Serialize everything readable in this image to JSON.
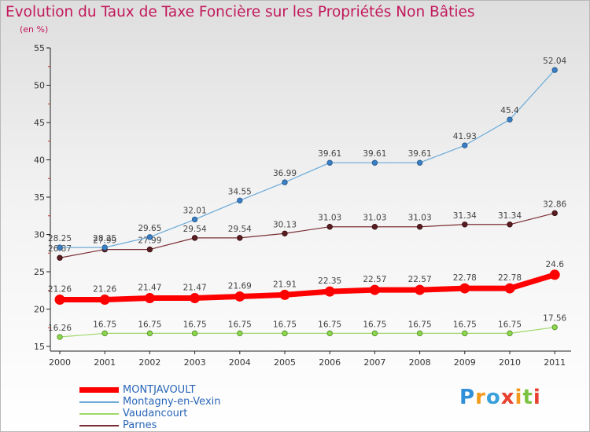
{
  "header": {
    "title": "Evolution du Taux de Taxe Foncière sur les Propriétés Non Bâties",
    "subtitle": "(en %)"
  },
  "logo_text": "Proxiti",
  "chart_data": {
    "type": "line",
    "title": "Evolution du Taux de Taxe Foncière sur les Propriétés Non Bâties",
    "ylabel": "(en %)",
    "xlabel": "",
    "x": [
      "2000",
      "2001",
      "2002",
      "2003",
      "2004",
      "2005",
      "2006",
      "2007",
      "2008",
      "2009",
      "2010",
      "2011"
    ],
    "ylim": [
      15,
      55
    ],
    "yticks": [
      15,
      20,
      25,
      30,
      35,
      40,
      45,
      50,
      55
    ],
    "grid": false,
    "legend_position": "bottom-left",
    "series": [
      {
        "name": "MONTJAVOULT",
        "color": "#ff0000",
        "values": [
          21.26,
          21.26,
          21.47,
          21.47,
          21.69,
          21.91,
          22.35,
          22.57,
          22.57,
          22.78,
          22.78,
          24.6
        ],
        "labels": [
          "21.26",
          "21.26",
          "21.47",
          "21.47",
          "21.69",
          "21.91",
          "22.35",
          "22.57",
          "22.57",
          "22.78",
          "22.78",
          "24.6"
        ]
      },
      {
        "name": "Montagny-en-Vexin",
        "color": "#6aaad8",
        "values": [
          28.25,
          28.25,
          29.65,
          32.01,
          34.55,
          36.99,
          39.61,
          39.61,
          39.61,
          41.93,
          45.4,
          52.04
        ],
        "labels": [
          "28.25",
          "28.25",
          "29.65",
          "32.01",
          "34.55",
          "36.99",
          "39.61",
          "39.61",
          "39.61",
          "41.93",
          "45.4",
          "52.04"
        ]
      },
      {
        "name": "Vaudancourt",
        "color": "#9fd86a",
        "values": [
          16.26,
          16.75,
          16.75,
          16.75,
          16.75,
          16.75,
          16.75,
          16.75,
          16.75,
          16.75,
          16.75,
          17.56
        ],
        "labels": [
          "16.26",
          "16.75",
          "16.75",
          "16.75",
          "16.75",
          "16.75",
          "16.75",
          "16.75",
          "16.75",
          "16.75",
          "16.75",
          "17.56"
        ]
      },
      {
        "name": "Parnes",
        "color": "#7a2e33",
        "values": [
          26.87,
          27.99,
          27.99,
          29.54,
          29.54,
          30.13,
          31.03,
          31.03,
          31.03,
          31.34,
          31.34,
          32.86
        ],
        "labels": [
          "26.87",
          "27.99",
          "27.99",
          "29.54",
          "29.54",
          "30.13",
          "31.03",
          "31.03",
          "31.03",
          "31.34",
          "31.34",
          "32.86"
        ]
      }
    ]
  }
}
